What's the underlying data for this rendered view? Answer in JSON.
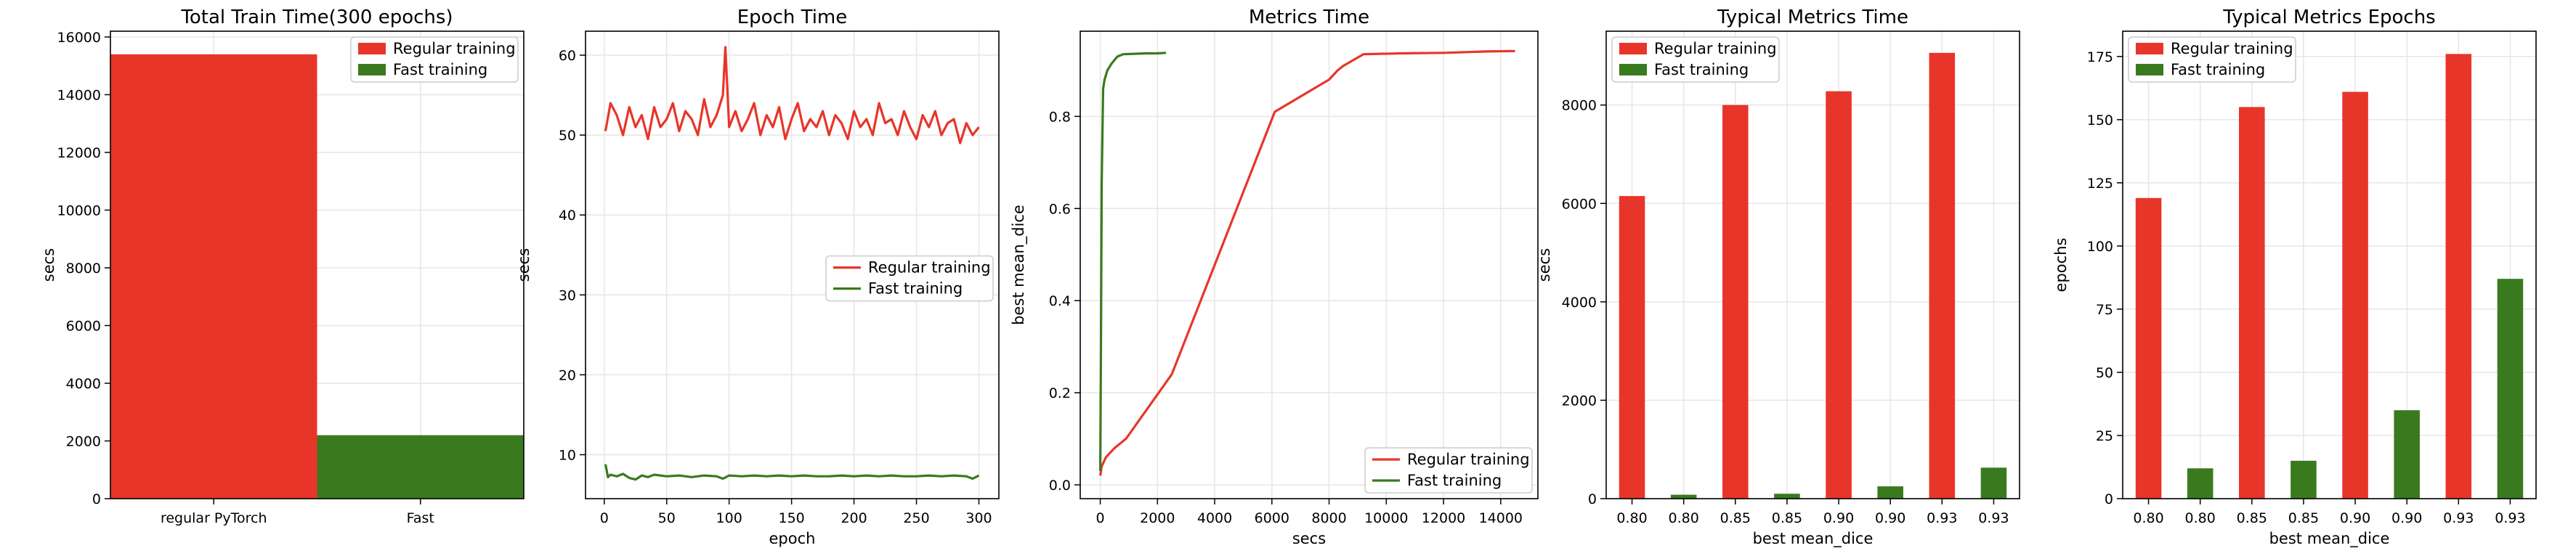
{
  "colors": {
    "regular": "#e8352a",
    "fast": "#3a7a1f",
    "grid": "#e6e6e6"
  },
  "chart_data": [
    {
      "type": "bar",
      "title": "Total Train Time(300 epochs)",
      "xlabel": "",
      "ylabel": "secs",
      "categories": [
        "regular PyTorch",
        "Fast"
      ],
      "values": [
        15400,
        2200
      ],
      "series_names": [
        "Regular training",
        "Fast training"
      ],
      "ylim": [
        0,
        16200
      ],
      "yticks": [
        0,
        2000,
        4000,
        6000,
        8000,
        10000,
        12000,
        14000,
        16000
      ],
      "legend": "top-right",
      "grid": true
    },
    {
      "type": "line",
      "title": "Epoch Time",
      "xlabel": "epoch",
      "ylabel": "secs",
      "xlim": [
        -15,
        316
      ],
      "ylim": [
        4.5,
        63
      ],
      "xticks": [
        0,
        50,
        100,
        150,
        200,
        250,
        300
      ],
      "yticks": [
        10,
        20,
        30,
        40,
        50,
        60
      ],
      "legend": "center-right",
      "grid": true,
      "series": [
        {
          "name": "Regular training",
          "x": [
            1,
            5,
            10,
            15,
            20,
            25,
            30,
            35,
            40,
            45,
            50,
            55,
            60,
            65,
            70,
            75,
            80,
            85,
            90,
            95,
            97,
            100,
            105,
            110,
            115,
            120,
            125,
            130,
            135,
            140,
            145,
            150,
            155,
            160,
            165,
            170,
            175,
            180,
            185,
            190,
            195,
            200,
            205,
            210,
            215,
            220,
            225,
            230,
            235,
            240,
            245,
            250,
            255,
            260,
            265,
            270,
            275,
            280,
            285,
            290,
            295,
            300
          ],
          "values": [
            50.5,
            54,
            52.5,
            50,
            53.5,
            51,
            52.5,
            49.5,
            53.5,
            51,
            52,
            54,
            50.5,
            53,
            52,
            50,
            54.5,
            51,
            52.5,
            55,
            61,
            51,
            53,
            50.5,
            52,
            54,
            50,
            52.5,
            51,
            53.5,
            49.5,
            52,
            54,
            50.5,
            52,
            51,
            53,
            50,
            52.5,
            51.5,
            49.5,
            53,
            51,
            52,
            50,
            54,
            51.5,
            52,
            50,
            53,
            51,
            49.5,
            52.5,
            51,
            53,
            50,
            51.5,
            52,
            49,
            51.5,
            50,
            51
          ]
        },
        {
          "name": "Fast training",
          "x": [
            1,
            3,
            5,
            10,
            15,
            20,
            25,
            30,
            35,
            40,
            50,
            60,
            70,
            80,
            90,
            95,
            100,
            110,
            120,
            130,
            140,
            150,
            160,
            170,
            180,
            190,
            200,
            210,
            220,
            230,
            240,
            250,
            260,
            270,
            280,
            290,
            295,
            300
          ],
          "values": [
            8.8,
            7.2,
            7.5,
            7.3,
            7.6,
            7.1,
            6.9,
            7.4,
            7.2,
            7.5,
            7.3,
            7.4,
            7.2,
            7.4,
            7.3,
            7.0,
            7.4,
            7.3,
            7.4,
            7.3,
            7.4,
            7.3,
            7.4,
            7.3,
            7.3,
            7.4,
            7.3,
            7.4,
            7.3,
            7.4,
            7.3,
            7.3,
            7.4,
            7.3,
            7.4,
            7.3,
            7.0,
            7.4
          ]
        }
      ]
    },
    {
      "type": "line",
      "title": "Metrics Time",
      "xlabel": "secs",
      "ylabel": "best mean_dice",
      "xlim": [
        -700,
        15300
      ],
      "ylim": [
        -0.03,
        0.985
      ],
      "xticks": [
        0,
        2000,
        4000,
        6000,
        8000,
        10000,
        12000,
        14000
      ],
      "yticks": [
        0.0,
        0.2,
        0.4,
        0.6,
        0.8
      ],
      "ytick_labels": [
        "0.0",
        "0.2",
        "0.4",
        "0.6",
        "0.8"
      ],
      "legend": "bottom-right",
      "grid": true,
      "series": [
        {
          "name": "Regular training",
          "x": [
            0,
            50,
            200,
            500,
            700,
            900,
            2500,
            6100,
            8000,
            8300,
            8500,
            9200,
            10500,
            12000,
            13500,
            14500
          ],
          "values": [
            0.02,
            0.04,
            0.06,
            0.08,
            0.09,
            0.1,
            0.24,
            0.81,
            0.88,
            0.9,
            0.91,
            0.935,
            0.937,
            0.938,
            0.941,
            0.942
          ]
        },
        {
          "name": "Fast training",
          "x": [
            0,
            25,
            50,
            100,
            150,
            250,
            400,
            600,
            800,
            1200,
            1600,
            2000,
            2300
          ],
          "values": [
            0.03,
            0.3,
            0.65,
            0.86,
            0.88,
            0.9,
            0.915,
            0.93,
            0.935,
            0.936,
            0.937,
            0.937,
            0.938
          ]
        }
      ]
    },
    {
      "type": "bar",
      "title": "Typical Metrics Time",
      "xlabel": "best mean_dice",
      "ylabel": "secs",
      "categories": [
        "0.80",
        "0.80",
        "0.85",
        "0.85",
        "0.90",
        "0.90",
        "0.93",
        "0.93"
      ],
      "values": [
        6150,
        80,
        8000,
        100,
        8280,
        250,
        9060,
        630
      ],
      "bar_series": [
        0,
        1,
        0,
        1,
        0,
        1,
        0,
        1
      ],
      "series_names": [
        "Regular training",
        "Fast training"
      ],
      "ylim": [
        0,
        9500
      ],
      "yticks": [
        0,
        2000,
        4000,
        6000,
        8000
      ],
      "legend": "top-left",
      "grid": true
    },
    {
      "type": "bar",
      "title": "Typical Metrics Epochs",
      "xlabel": "best mean_dice",
      "ylabel": "epochs",
      "categories": [
        "0.80",
        "0.80",
        "0.85",
        "0.85",
        "0.90",
        "0.90",
        "0.93",
        "0.93"
      ],
      "values": [
        119,
        12,
        155,
        15,
        161,
        35,
        176,
        87
      ],
      "bar_series": [
        0,
        1,
        0,
        1,
        0,
        1,
        0,
        1
      ],
      "series_names": [
        "Regular training",
        "Fast training"
      ],
      "ylim": [
        0,
        185
      ],
      "yticks": [
        0,
        25,
        50,
        75,
        100,
        125,
        150,
        175
      ],
      "legend": "top-left",
      "grid": true
    }
  ]
}
